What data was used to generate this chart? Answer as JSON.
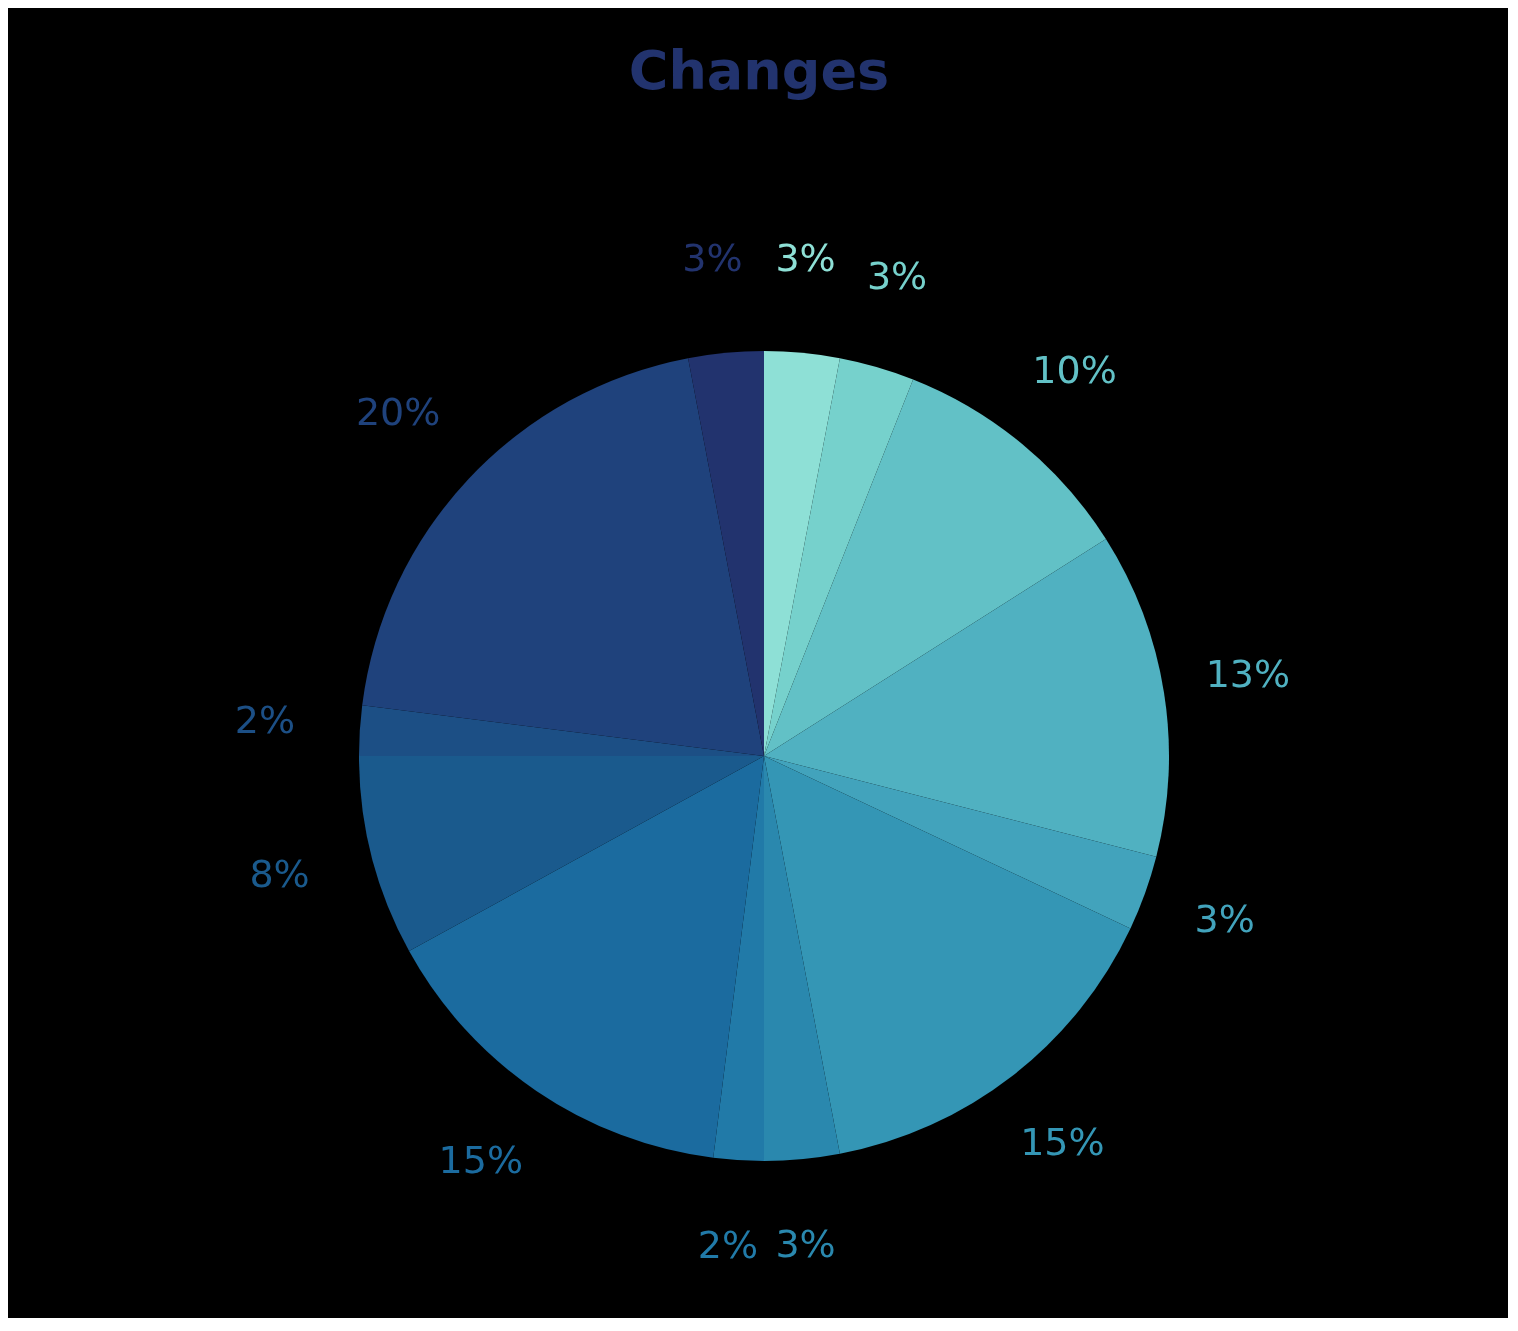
{
  "chart_data": {
    "type": "pie",
    "title": "Changes",
    "categories": [
      null,
      null,
      null,
      null,
      null,
      null,
      null,
      null,
      null,
      null,
      null,
      null,
      null
    ],
    "values": [
      3,
      3,
      10,
      13,
      3,
      15,
      3,
      2,
      15,
      8,
      2,
      20,
      3
    ],
    "value_labels": [
      "3%",
      "3%",
      "10%",
      "13%",
      "3%",
      "15%",
      "3%",
      "2%",
      "15%",
      "8%",
      "2%",
      "20%",
      "3%"
    ],
    "colors": [
      "#8ee0d6",
      "#76d1cc",
      "#62c1c6",
      "#50b1c1",
      "#42a3bc",
      "#3496b5",
      "#2a88ae",
      "#217aa8",
      "#1b6b9f",
      "#1a5a8d",
      "#1c4f85",
      "#1f427c",
      "#22336e"
    ],
    "legend": false
  }
}
